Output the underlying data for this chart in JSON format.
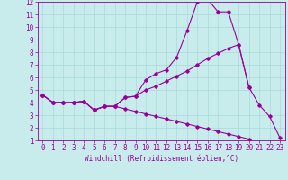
{
  "xlabel": "Windchill (Refroidissement éolien,°C)",
  "background_color": "#c8ecec",
  "grid_color": "#a8d8d8",
  "line_color": "#990099",
  "xlim": [
    -0.5,
    23.5
  ],
  "ylim": [
    1,
    12
  ],
  "xticks": [
    0,
    1,
    2,
    3,
    4,
    5,
    6,
    7,
    8,
    9,
    10,
    11,
    12,
    13,
    14,
    15,
    16,
    17,
    18,
    19,
    20,
    21,
    22,
    23
  ],
  "yticks": [
    1,
    2,
    3,
    4,
    5,
    6,
    7,
    8,
    9,
    10,
    11,
    12
  ],
  "series1": [
    4.6,
    4.0,
    4.0,
    4.0,
    4.1,
    3.4,
    3.7,
    3.7,
    4.4,
    4.5,
    5.8,
    6.3,
    6.6,
    7.6,
    9.7,
    12.0,
    12.2,
    11.2,
    11.2,
    8.6,
    5.2,
    3.8,
    2.9,
    1.2
  ],
  "series2_x": [
    0,
    1,
    2,
    3,
    4,
    5,
    6,
    7,
    8,
    9,
    10,
    11,
    12,
    13,
    14,
    15,
    16,
    17,
    18,
    19,
    20
  ],
  "series2_y": [
    4.6,
    4.0,
    4.0,
    4.0,
    4.1,
    3.4,
    3.7,
    3.7,
    4.4,
    4.5,
    5.0,
    5.3,
    5.7,
    6.1,
    6.5,
    7.0,
    7.5,
    7.9,
    8.3,
    8.6,
    5.2
  ],
  "series3_x": [
    0,
    1,
    2,
    3,
    4,
    5,
    6,
    7,
    8,
    9,
    10,
    11,
    12,
    13,
    14,
    15,
    16,
    17,
    18,
    19,
    20
  ],
  "series3_y": [
    4.6,
    4.0,
    4.0,
    4.0,
    4.1,
    3.4,
    3.7,
    3.7,
    3.5,
    3.3,
    3.1,
    2.9,
    2.7,
    2.5,
    2.3,
    2.1,
    1.9,
    1.7,
    1.5,
    1.3,
    1.1
  ],
  "tick_fontsize": 5.5,
  "xlabel_fontsize": 5.5
}
